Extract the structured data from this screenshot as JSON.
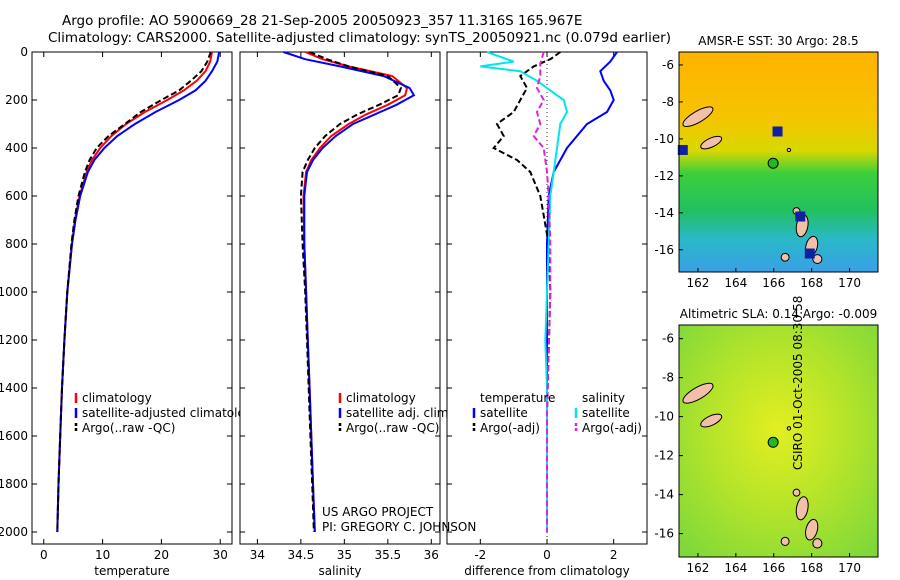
{
  "header": {
    "line1": "Argo profile: AO 5900669_28 21-Sep-2005 20050923_357 11.316S 165.967E",
    "line2": "Climatology: CARS2000. Satellite-adjusted climatology: synTS_20050921.nc (0.079d earlier)"
  },
  "side_stamp": "CSIRO 01-Oct-2005 08:30:58",
  "credit": {
    "line1": "US ARGO PROJECT",
    "line2": "PI: GREGORY C. JOHNSON"
  },
  "colors": {
    "climatology": "#ff0000",
    "satellite": "#0000ff",
    "argo": "#000000",
    "sat_salinity": "#00e5ee",
    "argo_salinity": "#e020e0"
  },
  "chart_data": [
    {
      "type": "line",
      "id": "temperature",
      "xlabel": "temperature",
      "ylabel": "",
      "xlim": [
        -2,
        32
      ],
      "ylim": [
        2050,
        0
      ],
      "xticks": [
        0,
        10,
        20,
        30
      ],
      "yticks": [
        0,
        200,
        400,
        600,
        800,
        1000,
        1200,
        1400,
        1600,
        1800,
        2000
      ],
      "legend": [
        "climatology",
        "satellite-adjusted climatology",
        "Argo(..raw -QC)"
      ],
      "series": [
        {
          "name": "climatology",
          "color": "#ff0000",
          "depth": [
            0,
            40,
            80,
            120,
            160,
            200,
            250,
            300,
            350,
            400,
            450,
            500,
            600,
            700,
            800,
            1000,
            1200,
            1400,
            1600,
            1800,
            2000
          ],
          "values": [
            28.6,
            28.3,
            27.5,
            26.0,
            23.8,
            21.0,
            17.2,
            14.0,
            11.5,
            9.6,
            8.2,
            7.3,
            6.1,
            5.3,
            4.8,
            4.0,
            3.5,
            3.1,
            2.8,
            2.5,
            2.3
          ]
        },
        {
          "name": "satellite-adjusted climatology",
          "color": "#0000ff",
          "depth": [
            0,
            40,
            80,
            120,
            160,
            200,
            250,
            300,
            350,
            400,
            450,
            500,
            600,
            700,
            800,
            1000,
            1200,
            1400,
            1600,
            1800,
            2000
          ],
          "values": [
            29.8,
            29.5,
            28.6,
            27.5,
            25.8,
            23.0,
            19.0,
            15.5,
            12.5,
            10.3,
            8.6,
            7.5,
            6.2,
            5.4,
            4.8,
            4.0,
            3.5,
            3.1,
            2.8,
            2.5,
            2.3
          ]
        },
        {
          "name": "Argo(..raw -QC)",
          "color": "#000000",
          "depth": [
            0,
            40,
            80,
            120,
            160,
            200,
            250,
            300,
            350,
            400,
            450,
            500,
            600,
            700,
            800,
            1000,
            1200,
            1400,
            1600,
            1800,
            2000
          ],
          "values": [
            28.4,
            27.8,
            26.8,
            25.0,
            23.0,
            20.0,
            16.5,
            13.8,
            11.0,
            9.0,
            7.8,
            7.0,
            5.9,
            5.2,
            4.7,
            4.0,
            3.5,
            3.1,
            2.8,
            2.5,
            2.3
          ]
        }
      ]
    },
    {
      "type": "line",
      "id": "salinity",
      "xlabel": "salinity",
      "ylabel": "",
      "xlim": [
        33.8,
        36.1
      ],
      "ylim": [
        2050,
        0
      ],
      "xticks": [
        34,
        34.5,
        35,
        35.5,
        36
      ],
      "yticks": [
        0,
        200,
        400,
        600,
        800,
        1000,
        1200,
        1400,
        1600,
        1800,
        2000
      ],
      "legend": [
        "climatology",
        "satellite adj. clim.",
        "Argo(..raw -QC)"
      ],
      "series": [
        {
          "name": "climatology",
          "color": "#ff0000",
          "depth": [
            0,
            30,
            60,
            100,
            150,
            180,
            220,
            260,
            300,
            350,
            400,
            450,
            500,
            600,
            800,
            1000,
            1200,
            1400,
            1600,
            1800,
            2000
          ],
          "values": [
            34.55,
            34.75,
            35.05,
            35.55,
            35.72,
            35.7,
            35.5,
            35.25,
            35.05,
            34.85,
            34.72,
            34.62,
            34.56,
            34.53,
            34.54,
            34.56,
            34.58,
            34.6,
            34.62,
            34.64,
            34.66
          ]
        },
        {
          "name": "satellite adj. clim.",
          "color": "#0000ff",
          "depth": [
            0,
            30,
            60,
            100,
            150,
            180,
            220,
            260,
            300,
            350,
            400,
            450,
            500,
            600,
            800,
            1000,
            1200,
            1400,
            1600,
            1800,
            2000
          ],
          "values": [
            34.3,
            34.55,
            34.95,
            35.45,
            35.75,
            35.8,
            35.6,
            35.35,
            35.1,
            34.9,
            34.75,
            34.64,
            34.57,
            34.54,
            34.54,
            34.56,
            34.58,
            34.6,
            34.62,
            34.64,
            34.66
          ]
        },
        {
          "name": "Argo(..raw -QC)",
          "color": "#000000",
          "depth": [
            0,
            30,
            60,
            100,
            150,
            180,
            220,
            260,
            300,
            350,
            400,
            450,
            500,
            600,
            800,
            1000,
            1200,
            1400,
            1600,
            1800,
            2000
          ],
          "values": [
            34.6,
            34.8,
            35.05,
            35.5,
            35.65,
            35.62,
            35.4,
            35.15,
            34.95,
            34.78,
            34.66,
            34.58,
            34.52,
            34.5,
            34.52,
            34.55,
            34.57,
            34.59,
            34.61,
            34.63,
            34.65
          ]
        }
      ]
    },
    {
      "type": "line",
      "id": "difference",
      "xlabel": "difference from climatology",
      "ylabel": "",
      "xlim": [
        -3,
        3
      ],
      "ylim": [
        2050,
        0
      ],
      "xticks": [
        -2,
        0,
        2
      ],
      "yticks": [
        0,
        200,
        400,
        600,
        800,
        1000,
        1200,
        1400,
        1600,
        1800,
        2000
      ],
      "legend_headers": [
        "temperature",
        "salinity"
      ],
      "legend": [
        "satellite",
        "Argo(-adj)",
        "satellite",
        "Argo(-adj)"
      ],
      "series": [
        {
          "name": "temperature satellite",
          "color": "#0000ff",
          "depth": [
            0,
            40,
            80,
            120,
            160,
            200,
            250,
            300,
            400,
            500,
            600,
            800,
            1000,
            1500,
            2000
          ],
          "values": [
            2.1,
            1.9,
            1.6,
            1.7,
            1.9,
            2.0,
            1.8,
            1.2,
            0.6,
            0.2,
            0.05,
            0.0,
            0.0,
            0.0,
            0.0
          ]
        },
        {
          "name": "temperature Argo(-adj)",
          "color": "#000000",
          "depth": [
            0,
            30,
            60,
            100,
            150,
            200,
            250,
            300,
            350,
            400,
            450,
            500,
            600,
            800,
            1000,
            1500,
            2000
          ],
          "values": [
            0.4,
            0.1,
            -0.4,
            -0.8,
            -0.6,
            -0.8,
            -1.0,
            -1.5,
            -1.3,
            -1.6,
            -0.9,
            -0.5,
            -0.2,
            0.05,
            0.1,
            0.0,
            0.0
          ]
        },
        {
          "name": "salinity satellite",
          "color": "#00e5ee",
          "depth": [
            0,
            40,
            60,
            80,
            120,
            160,
            200,
            250,
            300,
            400,
            500,
            600,
            800,
            1000,
            1200,
            1400,
            2000
          ],
          "values": [
            -1.8,
            -1.0,
            -2.0,
            -0.8,
            -0.3,
            0.1,
            0.5,
            0.6,
            0.4,
            0.3,
            0.2,
            0.1,
            0.05,
            0.0,
            -0.05,
            0.0,
            0.0
          ]
        },
        {
          "name": "salinity Argo(-adj)",
          "color": "#e020e0",
          "depth": [
            0,
            50,
            100,
            150,
            200,
            250,
            300,
            350,
            400,
            500,
            600,
            800,
            1000,
            1500,
            2000
          ],
          "values": [
            -0.1,
            -0.2,
            -0.2,
            -0.3,
            -0.1,
            -0.3,
            -0.2,
            -0.4,
            -0.1,
            0.0,
            0.05,
            0.1,
            0.1,
            0.0,
            0.0
          ]
        }
      ]
    },
    {
      "type": "heatmap",
      "id": "sst_map",
      "title": "AMSR-E SST: 30 Argo: 28.5",
      "xlim": [
        161,
        171.5
      ],
      "ylim": [
        -17.2,
        -5.3
      ],
      "xticks": [
        162,
        164,
        166,
        168,
        170
      ],
      "yticks": [
        -6,
        -8,
        -10,
        -12,
        -14,
        -16
      ],
      "marker": {
        "lon": 165.967,
        "lat": -11.316
      }
    },
    {
      "type": "heatmap",
      "id": "sla_map",
      "title": "Altimetric SLA: 0.14 Argo: -0.009",
      "xlim": [
        161,
        171.5
      ],
      "ylim": [
        -17.2,
        -5.3
      ],
      "xticks": [
        162,
        164,
        166,
        168,
        170
      ],
      "yticks": [
        -6,
        -8,
        -10,
        -12,
        -14,
        -16
      ],
      "marker": {
        "lon": 165.967,
        "lat": -11.316
      }
    }
  ]
}
